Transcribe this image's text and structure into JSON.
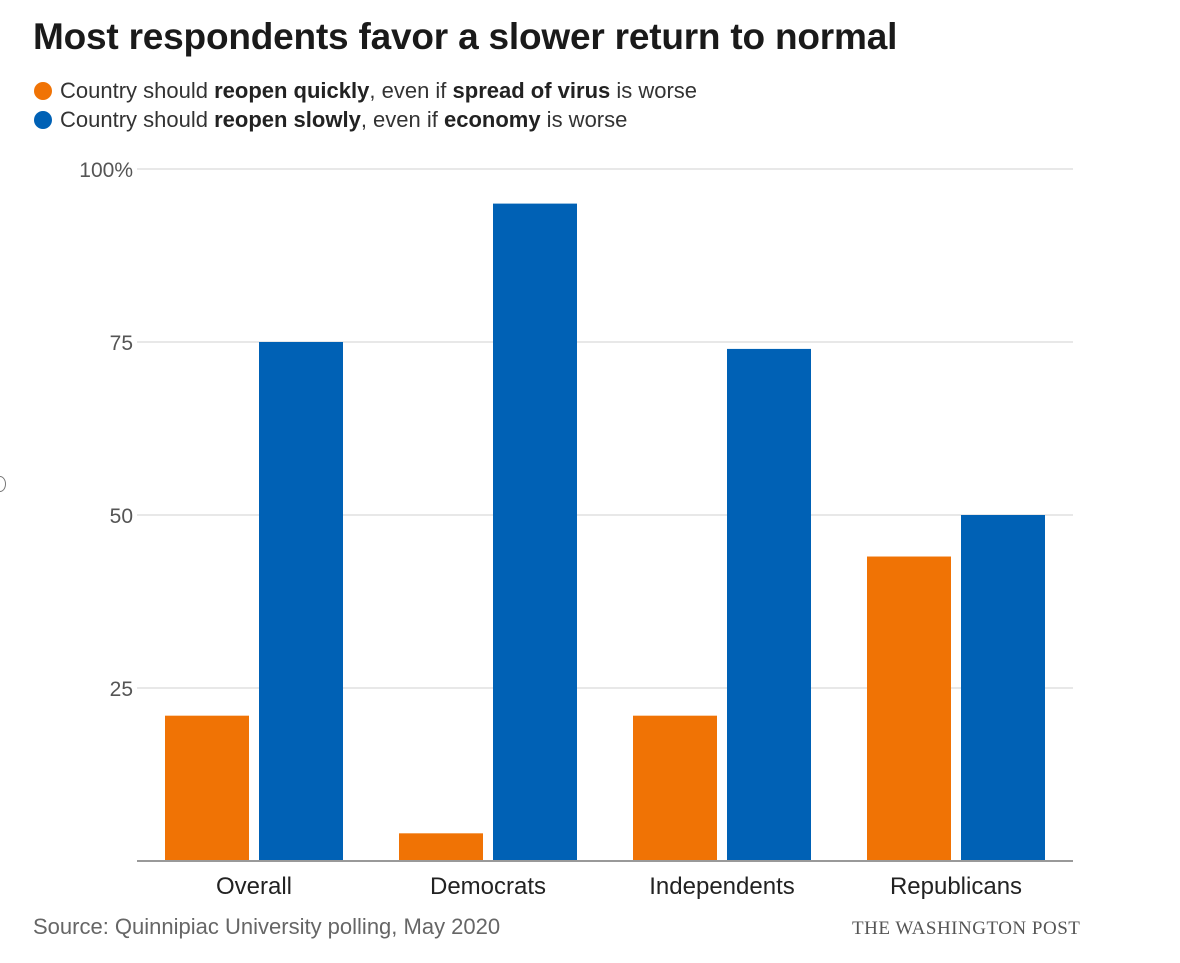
{
  "chart_data": {
    "type": "bar",
    "title": "Most respondents favor a slower return to normal",
    "categories": [
      "Overall",
      "Democrats",
      "Independents",
      "Republicans"
    ],
    "series": [
      {
        "legend": [
          {
            "text": "Country should ",
            "bold": false
          },
          {
            "text": "reopen quickly",
            "bold": true
          },
          {
            "text": ", even if ",
            "bold": false
          },
          {
            "text": "spread of virus",
            "bold": true
          },
          {
            "text": " is worse",
            "bold": false
          }
        ],
        "color": "#f07305",
        "values": [
          21,
          4,
          21,
          44
        ]
      },
      {
        "legend": [
          {
            "text": "Country should ",
            "bold": false
          },
          {
            "text": "reopen slowly",
            "bold": true
          },
          {
            "text": ", even if ",
            "bold": false
          },
          {
            "text": "economy",
            "bold": true
          },
          {
            "text": " is worse",
            "bold": false
          }
        ],
        "color": "#0061b5",
        "values": [
          75,
          95,
          74,
          50
        ]
      }
    ],
    "y_ticks": [
      {
        "value": 100,
        "label": "100%"
      },
      {
        "value": 75,
        "label": "75"
      },
      {
        "value": 50,
        "label": "50"
      },
      {
        "value": 25,
        "label": "25"
      }
    ],
    "ylim": [
      0,
      100
    ],
    "grid": true,
    "legend_position": "top-left",
    "source": "Source: Quinnipiac University polling, May 2020",
    "credit": "THE WASHINGTON POST"
  }
}
